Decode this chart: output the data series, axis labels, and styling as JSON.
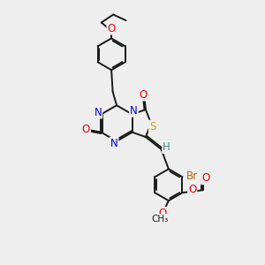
{
  "background_color": "#eeeeee",
  "bond_color": "#1a1a1a",
  "bond_width": 1.4,
  "atom_colors": {
    "N": "#0000ee",
    "O": "#ee0000",
    "S": "#bbaa00",
    "Br": "#bb6600",
    "H": "#448888",
    "C": "#1a1a1a"
  },
  "font_size": 8.5,
  "figsize": [
    3.0,
    3.0
  ],
  "dpi": 100
}
